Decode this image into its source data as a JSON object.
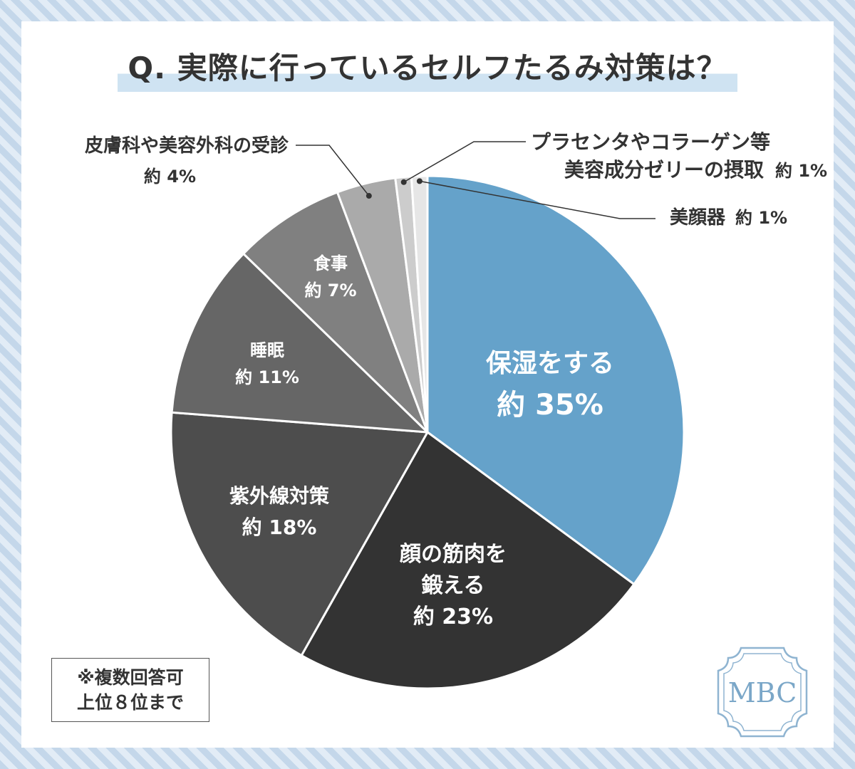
{
  "title": "Q. 実際に行っているセルフたるみ対策は？",
  "note": {
    "line1": "※複数回答可",
    "line2": "上位８位まで"
  },
  "logo_text": "MBC",
  "chart_data": {
    "type": "pie",
    "title": "Q. 実際に行っているセルフたるみ対策は？",
    "start": "12-o'clock, clockwise",
    "slices": [
      {
        "label_lines": [
          "保湿をする"
        ],
        "value_label": "約 35%",
        "value": 35,
        "color": "#65a2ca"
      },
      {
        "label_lines": [
          "顔の筋肉を",
          "鍛える"
        ],
        "value_label": "約 23%",
        "value": 23,
        "color": "#333333"
      },
      {
        "label_lines": [
          "紫外線対策"
        ],
        "value_label": "約 18%",
        "value": 18,
        "color": "#4d4d4d"
      },
      {
        "label_lines": [
          "睡眠"
        ],
        "value_label": "約 11%",
        "value": 11,
        "color": "#666666"
      },
      {
        "label_lines": [
          "食事"
        ],
        "value_label": "約 7%",
        "value": 7,
        "color": "#808080"
      },
      {
        "label_lines": [
          "皮膚科や美容外科の受診"
        ],
        "value_label": "約 4%",
        "value": 3.7,
        "color": "#aaaaaa"
      },
      {
        "label_lines": [
          "プラセンタやコラーゲン等",
          "美容成分ゼリーの摂取"
        ],
        "value_label": "約 1%",
        "value": 1,
        "color": "#cccccc"
      },
      {
        "label_lines": [
          "美顔器"
        ],
        "value_label": "約 1%",
        "value": 1,
        "color": "#e6e6e6"
      }
    ]
  }
}
